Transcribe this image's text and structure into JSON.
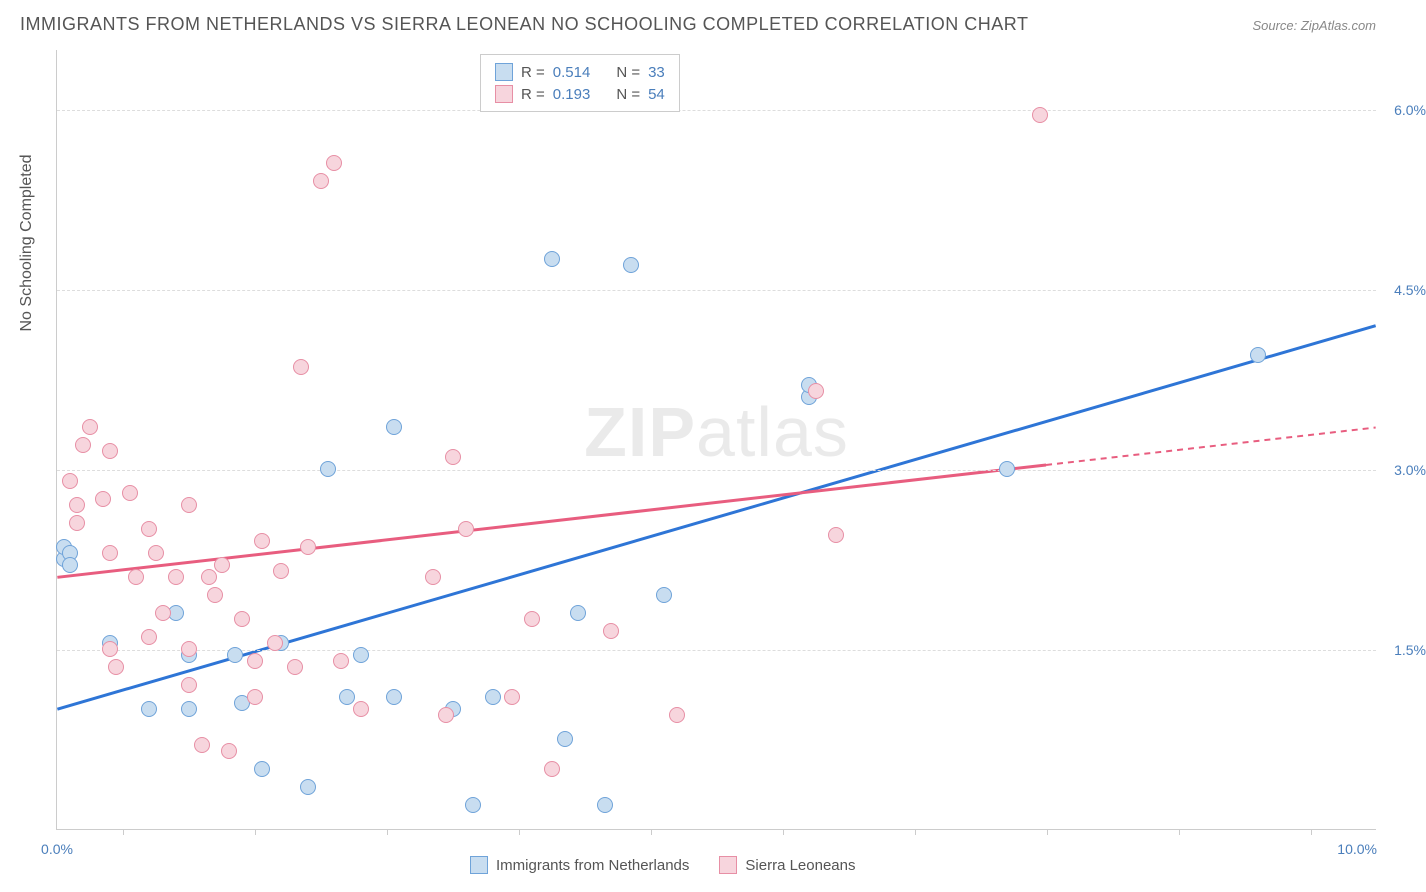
{
  "title": "IMMIGRANTS FROM NETHERLANDS VS SIERRA LEONEAN NO SCHOOLING COMPLETED CORRELATION CHART",
  "source": "Source: ZipAtlas.com",
  "ylabel": "No Schooling Completed",
  "watermark_a": "ZIP",
  "watermark_b": "atlas",
  "chart": {
    "type": "scatter",
    "xlim": [
      0,
      10
    ],
    "ylim": [
      0,
      6.5
    ],
    "x_min_label": "0.0%",
    "x_max_label": "10.0%",
    "y_ticks": [
      {
        "v": 1.5,
        "label": "1.5%"
      },
      {
        "v": 3.0,
        "label": "3.0%"
      },
      {
        "v": 4.5,
        "label": "4.5%"
      },
      {
        "v": 6.0,
        "label": "6.0%"
      }
    ],
    "x_ticks": [
      0.5,
      1.5,
      2.5,
      3.5,
      4.5,
      5.5,
      6.5,
      7.5,
      8.5,
      9.5
    ],
    "background_color": "#ffffff",
    "grid_color": "#dddddd",
    "axis_color": "#cccccc",
    "label_color": "#4a7ebb",
    "point_radius": 8,
    "series": [
      {
        "name": "Immigrants from Netherlands",
        "fill": "#c8ddf0",
        "stroke": "#6fa3d9",
        "line_color": "#2e75d6",
        "r": "0.514",
        "n": "33",
        "trend": {
          "x1": 0,
          "y1": 1.0,
          "x2": 10,
          "y2": 4.2,
          "solid_to": 10
        },
        "points": [
          [
            0.05,
            2.25
          ],
          [
            0.05,
            2.35
          ],
          [
            0.1,
            2.3
          ],
          [
            0.1,
            2.2
          ],
          [
            0.4,
            1.55
          ],
          [
            0.7,
            1.0
          ],
          [
            0.9,
            1.8
          ],
          [
            1.0,
            1.0
          ],
          [
            1.0,
            1.45
          ],
          [
            1.35,
            1.45
          ],
          [
            1.4,
            1.05
          ],
          [
            1.55,
            0.5
          ],
          [
            1.7,
            1.55
          ],
          [
            1.9,
            0.35
          ],
          [
            2.05,
            3.0
          ],
          [
            2.2,
            1.1
          ],
          [
            2.3,
            1.45
          ],
          [
            2.55,
            1.1
          ],
          [
            2.55,
            3.35
          ],
          [
            3.0,
            1.0
          ],
          [
            3.15,
            0.2
          ],
          [
            3.3,
            1.1
          ],
          [
            3.75,
            4.75
          ],
          [
            3.85,
            0.75
          ],
          [
            3.95,
            1.8
          ],
          [
            4.15,
            0.2
          ],
          [
            4.35,
            4.7
          ],
          [
            4.6,
            1.95
          ],
          [
            5.7,
            3.6
          ],
          [
            5.7,
            3.7
          ],
          [
            7.2,
            3.0
          ],
          [
            9.1,
            3.95
          ]
        ]
      },
      {
        "name": "Sierra Leoneans",
        "fill": "#f7d5dd",
        "stroke": "#e78fa5",
        "line_color": "#e85d7f",
        "r": "0.193",
        "n": "54",
        "trend": {
          "x1": 0,
          "y1": 2.1,
          "x2": 10,
          "y2": 3.35,
          "solid_to": 7.5
        },
        "points": [
          [
            0.1,
            2.9
          ],
          [
            0.15,
            2.55
          ],
          [
            0.15,
            2.7
          ],
          [
            0.2,
            3.2
          ],
          [
            0.25,
            3.35
          ],
          [
            0.35,
            2.75
          ],
          [
            0.4,
            3.15
          ],
          [
            0.4,
            2.3
          ],
          [
            0.4,
            1.5
          ],
          [
            0.45,
            1.35
          ],
          [
            0.55,
            2.8
          ],
          [
            0.6,
            2.1
          ],
          [
            0.7,
            2.5
          ],
          [
            0.7,
            1.6
          ],
          [
            0.75,
            2.3
          ],
          [
            0.8,
            1.8
          ],
          [
            0.9,
            2.1
          ],
          [
            1.0,
            2.7
          ],
          [
            1.0,
            1.5
          ],
          [
            1.0,
            1.2
          ],
          [
            1.1,
            0.7
          ],
          [
            1.15,
            2.1
          ],
          [
            1.2,
            1.95
          ],
          [
            1.25,
            2.2
          ],
          [
            1.3,
            0.65
          ],
          [
            1.4,
            1.75
          ],
          [
            1.5,
            1.1
          ],
          [
            1.5,
            1.4
          ],
          [
            1.55,
            2.4
          ],
          [
            1.65,
            1.55
          ],
          [
            1.7,
            2.15
          ],
          [
            1.8,
            1.35
          ],
          [
            1.85,
            3.85
          ],
          [
            1.9,
            2.35
          ],
          [
            2.0,
            5.4
          ],
          [
            2.1,
            5.55
          ],
          [
            2.15,
            1.4
          ],
          [
            2.3,
            1.0
          ],
          [
            2.85,
            2.1
          ],
          [
            2.95,
            0.95
          ],
          [
            3.0,
            3.1
          ],
          [
            3.1,
            2.5
          ],
          [
            3.45,
            1.1
          ],
          [
            3.6,
            1.75
          ],
          [
            3.75,
            0.5
          ],
          [
            4.2,
            1.65
          ],
          [
            4.7,
            0.95
          ],
          [
            5.75,
            3.65
          ],
          [
            5.9,
            2.45
          ],
          [
            7.45,
            5.95
          ]
        ]
      }
    ]
  },
  "legend_top": {
    "r_label": "R =",
    "n_label": "N ="
  },
  "legend_bottom": [
    {
      "label": "Immigrants from Netherlands",
      "fill": "#c8ddf0",
      "stroke": "#6fa3d9"
    },
    {
      "label": "Sierra Leoneans",
      "fill": "#f7d5dd",
      "stroke": "#e78fa5"
    }
  ]
}
